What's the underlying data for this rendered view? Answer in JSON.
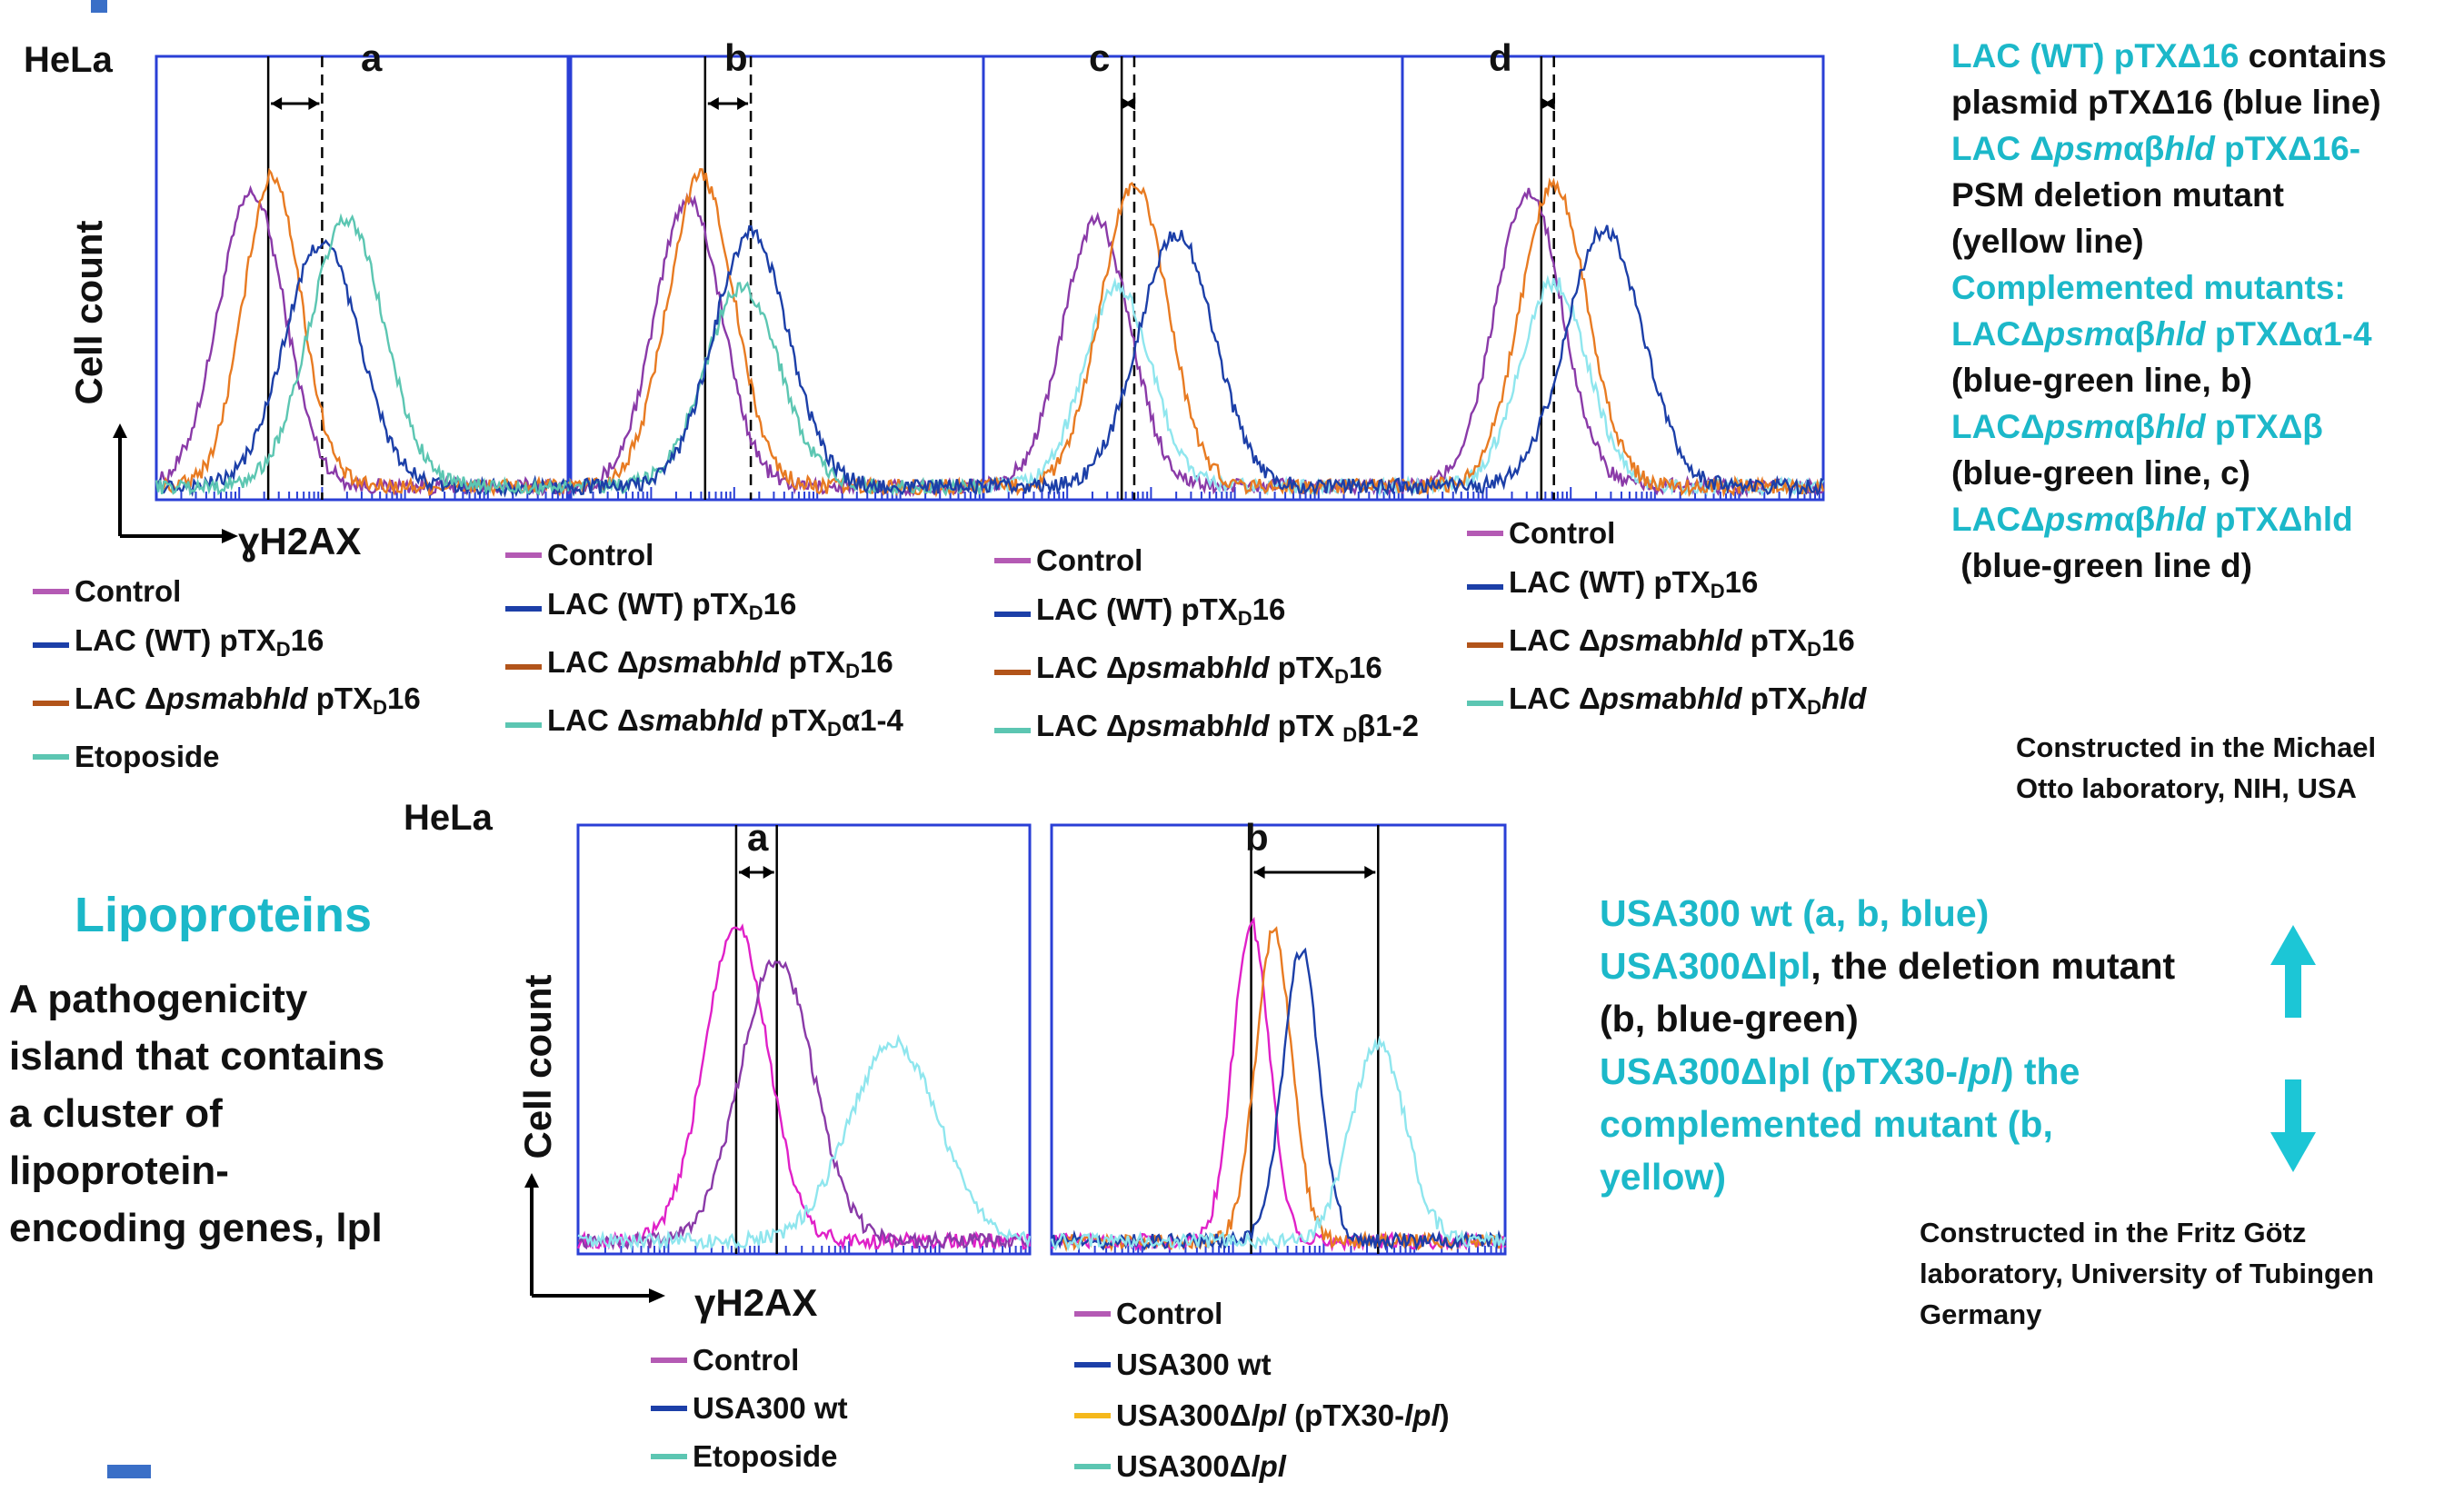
{
  "header_labels": {
    "top_cell": "HeLa",
    "bottom_cell": "HeLa"
  },
  "axes": {
    "top_ylabel": "Cell count",
    "top_xlabel": "ɣH2AX",
    "bottom_ylabel": "Cell count",
    "bottom_xlabel": "γH2AX"
  },
  "legends": {
    "a": {
      "items": [
        {
          "color": "#b45ab4",
          "text": "Control"
        },
        {
          "color": "#1c3fa8",
          "text": "LAC (WT) pTX",
          "sub": "D",
          "after": "16"
        },
        {
          "color": "#b2541a",
          "text": "LAC Δ",
          "ital": "psma",
          "mid": "b",
          "ital2": "hld",
          "after": " pTX",
          "sub": "D",
          "tail": "16"
        },
        {
          "color": "#5cc6b2",
          "text": "Etoposide"
        }
      ]
    },
    "b": {
      "items": [
        {
          "color": "#b45ab4",
          "text": "Control"
        },
        {
          "color": "#1c3fa8",
          "text": "LAC (WT) pTX",
          "sub": "D",
          "after": "16"
        },
        {
          "color": "#b2541a",
          "text": "LAC  Δ",
          "ital": "psma",
          "mid": "b",
          "ital2": "hld",
          "after": " pTX",
          "sub": "D",
          "tail": "16"
        },
        {
          "color": "#5cc6b2",
          "text": " LAC Δ",
          "ital": "sma",
          "mid": "b",
          "ital2": "hld",
          "after": " pTX",
          "sub": "D",
          "tail": "α1-4"
        }
      ]
    },
    "c": {
      "items": [
        {
          "color": "#b45ab4",
          "text": "Control"
        },
        {
          "color": "#1c3fa8",
          "text": "LAC (WT) pTX",
          "sub": "D",
          "after": "16"
        },
        {
          "color": "#b2541a",
          "text": "LAC  Δ",
          "ital": "psma",
          "mid": "b",
          "ital2": "hld",
          "after": " pTX",
          "sub": "D",
          "tail": "16"
        },
        {
          "color": "#5cc6b2",
          "text": "LAC Δ",
          "ital": "psma",
          "mid": "b",
          "ital2": "hld",
          "after": " pTX ",
          "sub": "D",
          "tail": "β1-2"
        }
      ]
    },
    "d": {
      "items": [
        {
          "color": "#b45ab4",
          "text": "Control"
        },
        {
          "color": "#1c3fa8",
          "text": "LAC (WT) pTX",
          "sub": "D",
          "after": "16"
        },
        {
          "color": "#b2541a",
          "text": "LAC  Δ",
          "ital": "psma",
          "mid": "b",
          "ital2": "hld",
          "after": " pTX",
          "sub": "D",
          "tail": "16"
        },
        {
          "color": "#5cc6b2",
          "text": "LAC Δ",
          "ital": "psma",
          "mid": "b",
          "ital2": "hld",
          "after": " pTX",
          "sub": "D",
          "tailital": "hld"
        }
      ]
    },
    "e": {
      "items": [
        {
          "color": "#b45ab4",
          "text": "Control"
        },
        {
          "color": "#1c3fa8",
          "text": "USA300 wt"
        },
        {
          "color": "#5cc6b2",
          "text": "Etoposide"
        }
      ]
    },
    "f": {
      "items": [
        {
          "color": "#b45ab4",
          "text": "Control"
        },
        {
          "color": "#1c3fa8",
          "text": "USA300 wt"
        },
        {
          "color": "#f5b81c",
          "text": "USA300Δ",
          "ital": "lpl",
          "after": " (pTX30-",
          "ital2": "lpl",
          "tail": ")"
        },
        {
          "color": "#5cc6b2",
          "text": "USA300Δ",
          "ital": "lpl"
        }
      ]
    }
  },
  "right_note_top": [
    {
      "teal": "LAC (WT) pTXΔ16",
      "dark": " contains"
    },
    {
      "dark": "plasmid pTXΔ16 (blue line)"
    },
    {
      "teal": "LAC Δ",
      "tealital": "psm",
      "teal2": "αβ",
      "tealital2": "hld",
      "teal3": " pTXΔ16-"
    },
    {
      "dark": "PSM deletion mutant"
    },
    {
      "dark": "(yellow line)"
    },
    {
      "teal": "Complemented mutants:"
    },
    {
      "teal": "LACΔ",
      "tealital": "psm",
      "teal2": "αβ",
      "tealital2": "hld",
      "teal3": " pTXΔα1-4"
    },
    {
      "dark": "(blue-green line, b)"
    },
    {
      "teal": "LACΔ",
      "tealital": "psm",
      "teal2": "αβ",
      "tealital2": "hld",
      "teal3": " pTXΔβ"
    },
    {
      "dark": "(blue-green line, c)"
    },
    {
      "teal": "LACΔ",
      "tealital": "psm",
      "teal2": "αβ",
      "tealital2": "hld",
      "teal3": " pTXΔhld"
    },
    {
      "dark": " (blue-green line d)"
    }
  ],
  "credit_top": [
    "Constructed in the Michael",
    "Otto laboratory, NIH, USA"
  ],
  "lipoproteins": {
    "title": "Lipoproteins",
    "desc": [
      "A pathogenicity",
      "island that contains",
      "a cluster of",
      "lipoprotein-",
      "encoding genes, lpl"
    ]
  },
  "right_note_bottom": [
    {
      "teal": "USA300 wt (a, b, blue)"
    },
    {
      "teal": "USA300Δlpl",
      "dark": ", the deletion mutant"
    },
    {
      "dark": "(b, blue-green)"
    },
    {
      "teal": "USA300Δlpl (pTX30-",
      "tealital": "lpl",
      "teal3": ") the"
    },
    {
      "teal": "complemented mutant (b,"
    },
    {
      "teal": "yellow)"
    }
  ],
  "credit_bottom": [
    "Constructed in the Fritz Götz",
    "laboratory, University of Tubingen",
    "Germany"
  ],
  "colors": {
    "frame": "#2a3fd6",
    "control": "#8a3aa8",
    "wt": "#1c3fa8",
    "mutant": "#e87b22",
    "etoposide": "#5cc6b2",
    "comp": "#8fe6ee",
    "control_bottom": "#e020c8",
    "accent": "#1cb8c9"
  },
  "chart_data": [
    {
      "type": "line",
      "panel": "a",
      "title": "a",
      "series": [
        {
          "color_key": "control",
          "mode": 23,
          "sd": 8,
          "peak": 0.66
        },
        {
          "color_key": "mutant",
          "mode": 28,
          "sd": 7,
          "peak": 0.7
        },
        {
          "color_key": "wt",
          "mode": 40,
          "sd": 9,
          "peak": 0.55
        },
        {
          "color_key": "etoposide",
          "mode": 46,
          "sd": 9,
          "peak": 0.6
        }
      ],
      "solid_line": 27,
      "dashed_line": 40
    },
    {
      "type": "line",
      "panel": "b",
      "title": "b",
      "series": [
        {
          "color_key": "control",
          "mode": 29,
          "sd": 8,
          "peak": 0.65
        },
        {
          "color_key": "mutant",
          "mode": 32,
          "sd": 8,
          "peak": 0.7
        },
        {
          "color_key": "etoposide",
          "mode": 42,
          "sd": 9,
          "peak": 0.45
        },
        {
          "color_key": "wt",
          "mode": 44,
          "sd": 9,
          "peak": 0.57
        }
      ],
      "solid_line": 33,
      "dashed_line": 44
    },
    {
      "type": "line",
      "panel": "c",
      "title": "c",
      "series": [
        {
          "color_key": "control",
          "mode": 27,
          "sd": 8,
          "peak": 0.6
        },
        {
          "color_key": "comp",
          "mode": 32,
          "sd": 8,
          "peak": 0.45
        },
        {
          "color_key": "mutant",
          "mode": 36,
          "sd": 8,
          "peak": 0.68
        },
        {
          "color_key": "wt",
          "mode": 46,
          "sd": 9,
          "peak": 0.57
        }
      ],
      "solid_line": 33,
      "dashed_line": 36
    },
    {
      "type": "line",
      "panel": "d",
      "title": "d",
      "series": [
        {
          "color_key": "control",
          "mode": 30,
          "sd": 8,
          "peak": 0.66
        },
        {
          "color_key": "comp",
          "mode": 36,
          "sd": 8,
          "peak": 0.46
        },
        {
          "color_key": "mutant",
          "mode": 36,
          "sd": 8,
          "peak": 0.68
        },
        {
          "color_key": "wt",
          "mode": 48,
          "sd": 9,
          "peak": 0.58
        }
      ],
      "solid_line": 33,
      "dashed_line": 36
    },
    {
      "type": "line",
      "panel": "e",
      "title": "a",
      "series": [
        {
          "color_key": "control_bottom",
          "mode": 35,
          "sd": 7,
          "peak": 0.74
        },
        {
          "color_key": "control",
          "mode": 44,
          "sd": 8,
          "peak": 0.66
        },
        {
          "color_key": "comp",
          "mode": 70,
          "sd": 10,
          "peak": 0.46
        }
      ],
      "solid_line": 35,
      "dashed_line": 44
    },
    {
      "type": "line",
      "panel": "f",
      "title": "b",
      "series": [
        {
          "color_key": "control_bottom",
          "mode": 44,
          "sd": 4,
          "peak": 0.74
        },
        {
          "color_key": "mutant",
          "mode": 49,
          "sd": 4,
          "peak": 0.72
        },
        {
          "color_key": "wt",
          "mode": 55,
          "sd": 4,
          "peak": 0.68
        },
        {
          "color_key": "comp",
          "mode": 72,
          "sd": 6,
          "peak": 0.46
        }
      ],
      "solid_line": 44,
      "dashed_line": 72
    }
  ]
}
